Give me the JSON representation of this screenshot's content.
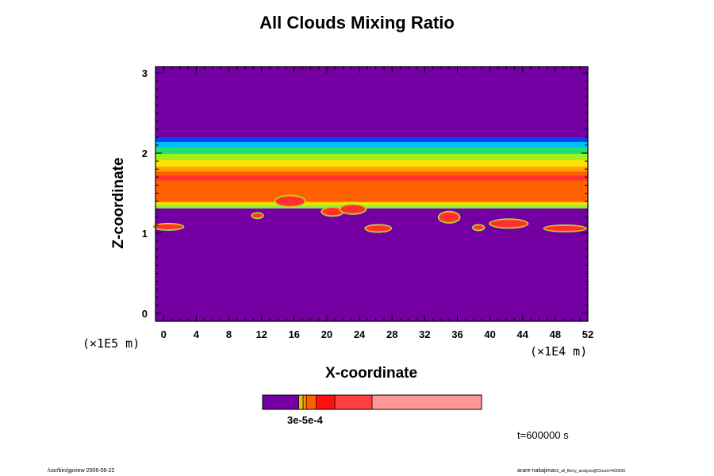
{
  "chart_data": {
    "type": "heatmap",
    "title": "All Clouds Mixing Ratio",
    "xlabel": "X-coordinate",
    "ylabel": "Z-coordinate",
    "x_scale_note": "(×1E4 m)",
    "y_scale_note": "(×1E5 m)",
    "xlim": [
      -1,
      52
    ],
    "ylim": [
      -0.1,
      3.08
    ],
    "x_ticks": [
      0,
      4,
      8,
      12,
      16,
      20,
      24,
      28,
      32,
      36,
      40,
      44,
      48,
      52
    ],
    "y_ticks": [
      0,
      1,
      2,
      3
    ],
    "layers": [
      {
        "z_range": [
          2.17,
          3.08
        ],
        "color": "#7400a4"
      },
      {
        "z_range": [
          2.12,
          2.2
        ],
        "color": "#1040f0"
      },
      {
        "z_range": [
          2.05,
          2.14
        ],
        "color": "#00c0f0"
      },
      {
        "z_range": [
          1.98,
          2.07
        ],
        "color": "#20e070"
      },
      {
        "z_range": [
          1.9,
          1.99
        ],
        "color": "#a0f020"
      },
      {
        "z_range": [
          1.82,
          1.91
        ],
        "color": "#ffe000"
      },
      {
        "z_range": [
          1.76,
          1.83
        ],
        "color": "#ffa000"
      },
      {
        "z_range": [
          1.38,
          1.77
        ],
        "color": "#ff6000"
      },
      {
        "z_range": [
          1.66,
          1.72
        ],
        "color": "#ff3030"
      },
      {
        "z_range": [
          1.34,
          1.39
        ],
        "color": "#ffe000"
      },
      {
        "z_range": [
          1.31,
          1.35
        ],
        "color": "#90ee40"
      },
      {
        "z_range": [
          -0.1,
          1.31
        ],
        "color": "#7400a4"
      }
    ],
    "cloud_patches": [
      {
        "x": 0.6,
        "z": 1.08,
        "w": 3.5,
        "h": 0.06
      },
      {
        "x": 11.5,
        "z": 1.22,
        "w": 1.2,
        "h": 0.05
      },
      {
        "x": 15.5,
        "z": 1.4,
        "w": 3.5,
        "h": 0.12
      },
      {
        "x": 20.7,
        "z": 1.27,
        "w": 2.5,
        "h": 0.09
      },
      {
        "x": 23.2,
        "z": 1.3,
        "w": 3,
        "h": 0.1
      },
      {
        "x": 26.3,
        "z": 1.06,
        "w": 3,
        "h": 0.07
      },
      {
        "x": 35.0,
        "z": 1.2,
        "w": 2.4,
        "h": 0.12
      },
      {
        "x": 42.3,
        "z": 1.12,
        "w": 4.5,
        "h": 0.09
      },
      {
        "x": 38.6,
        "z": 1.07,
        "w": 1.2,
        "h": 0.05
      },
      {
        "x": 49.2,
        "z": 1.06,
        "w": 5,
        "h": 0.06
      }
    ],
    "colorbar": {
      "colors": [
        "#7400a4",
        "#e8c000",
        "#ff9000",
        "#ff6000",
        "#ff1010",
        "#ff4040",
        "#ff9898"
      ],
      "stops": [
        0,
        0.165,
        0.185,
        0.2,
        0.245,
        0.33,
        0.5,
        1.0
      ],
      "label": "3e-5e-4"
    },
    "time_label": "t=600000 s"
  },
  "footer": {
    "left": "/usr/bin/gpview 2006-08-22",
    "right": "arare-nakajima",
    "right_small": "03_all_Berry_analysis@Cloud,t=600000"
  }
}
